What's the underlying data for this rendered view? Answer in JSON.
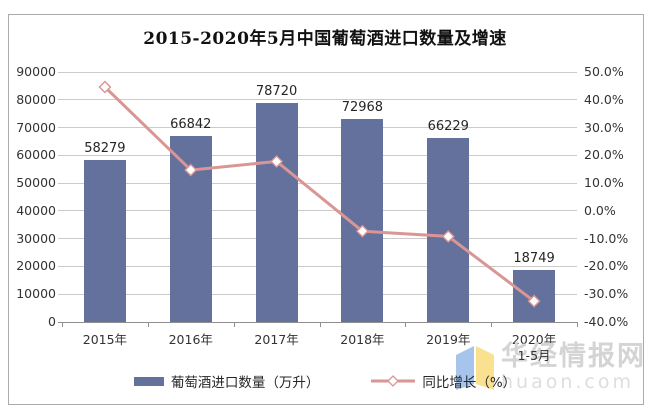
{
  "title": "2015-2020年5月中国葡萄酒进口数量及增速",
  "watermark": {
    "brand": "华经情报网",
    "domain": "huaon.com"
  },
  "colors": {
    "bar": "#64719d",
    "line": "#d99694",
    "marker_fill": "#ffffff",
    "grid": "#cbcbcb",
    "axis_line": "#8f8f8f",
    "axis_text": "#333333",
    "frame_border": "#ababab",
    "logo_blue": "#a7c4ec",
    "logo_yellow": "#f9e18f"
  },
  "chart_data": {
    "type": "bar",
    "subtype": "bar-line-combo",
    "title": "2015-2020年5月中国葡萄酒进口数量及增速",
    "categories": [
      "2015年",
      "2016年",
      "2017年",
      "2018年",
      "2019年",
      "2020年"
    ],
    "category_sublabels": [
      "",
      "",
      "",
      "",
      "",
      "1-5月"
    ],
    "series": [
      {
        "name": "葡萄酒进口数量（万升）",
        "type": "bar",
        "axis": "left",
        "values": [
          58279,
          66842,
          78720,
          72968,
          66229,
          18749
        ],
        "data_labels": [
          "58279",
          "66842",
          "78720",
          "72968",
          "66229",
          "18749"
        ]
      },
      {
        "name": "同比增长（%）",
        "type": "line",
        "axis": "right",
        "values": [
          44.6,
          14.7,
          17.8,
          -7.3,
          -9.2,
          -32.5
        ]
      }
    ],
    "left_axis": {
      "min": 0,
      "max": 90000,
      "step": 10000,
      "tick_labels": [
        "0",
        "10000",
        "20000",
        "30000",
        "40000",
        "50000",
        "60000",
        "70000",
        "80000",
        "90000"
      ]
    },
    "right_axis": {
      "min": -40,
      "max": 50,
      "step": 10,
      "suffix": "%",
      "tick_labels": [
        "-40.0%",
        "-30.0%",
        "-20.0%",
        "-10.0%",
        "0.0%",
        "10.0%",
        "20.0%",
        "30.0%",
        "40.0%",
        "50.0%"
      ]
    },
    "grid": true,
    "legend_position": "bottom"
  }
}
